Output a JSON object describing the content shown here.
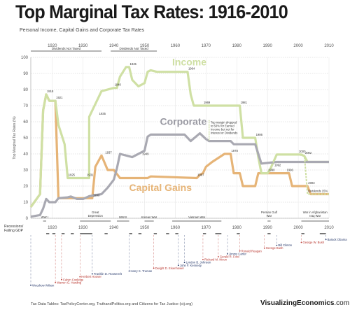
{
  "header": {
    "title": "Top Marginal Tax Rates: 1916-2010",
    "subtitle": "Personal Income, Capital Gains and Corporate Tax Rates"
  },
  "footer": {
    "source": "Tax Data Tables: TaxPolicyCenter.org, TruthandPolitics.org and Citizens for Tax Justice (ctj.org)",
    "brand_main": "VisualizingEconomics",
    "brand_domain": ".com"
  },
  "bands": {
    "top": [
      {
        "label": "Dividends Not Taxed",
        "start": 1913,
        "end": 1936
      },
      {
        "label": "Dividends Not Taxed",
        "start": 1939,
        "end": 1954
      }
    ],
    "events": [
      {
        "label": "WW I",
        "start": 1917,
        "end": 1918
      },
      {
        "label": "Great Depression",
        "start": 1929,
        "end": 1939
      },
      {
        "label": "WW II",
        "start": 1941,
        "end": 1945
      },
      {
        "label": "Korean War",
        "start": 1950,
        "end": 1953
      },
      {
        "label": "Vietnam War",
        "start": 1959,
        "end": 1975
      },
      {
        "label": "Persian Gulf War",
        "start": 1990,
        "end": 1991
      },
      {
        "label": "War in Afghanistan Iraq War",
        "start": 2001,
        "end": 2010
      }
    ]
  },
  "recession_label": "Recessions/ Falling GDP",
  "recessions": [
    [
      1918,
      1919
    ],
    [
      1920,
      1921
    ],
    [
      1923,
      1924
    ],
    [
      1926,
      1927
    ],
    [
      1929,
      1933
    ],
    [
      1937,
      1938
    ],
    [
      1945,
      1946
    ],
    [
      1948,
      1949
    ],
    [
      1953,
      1954
    ],
    [
      1957,
      1958
    ],
    [
      1960,
      1961
    ],
    [
      1969,
      1970
    ],
    [
      1973,
      1975
    ],
    [
      1980,
      1981
    ],
    [
      1990,
      1991
    ],
    [
      2001,
      2002
    ],
    [
      2007,
      2009
    ]
  ],
  "presidents": [
    {
      "name": "Woodrow Wilson",
      "year": 1913,
      "color": "#27396b"
    },
    {
      "name": "Warren G. Harding",
      "year": 1921,
      "color": "#b8342c"
    },
    {
      "name": "Calvin Coolidge",
      "year": 1923,
      "color": "#b8342c"
    },
    {
      "name": "Herbert Hoover",
      "year": 1929,
      "color": "#b8342c"
    },
    {
      "name": "Franklin D. Roosevelt",
      "year": 1933,
      "color": "#27396b"
    },
    {
      "name": "Harry S. Truman",
      "year": 1945,
      "color": "#27396b"
    },
    {
      "name": "Dwight D. Eisenhower",
      "year": 1953,
      "color": "#b8342c"
    },
    {
      "name": "John F. Kennedy",
      "year": 1961,
      "color": "#27396b"
    },
    {
      "name": "Lyndon B. Johnson",
      "year": 1963,
      "color": "#27396b"
    },
    {
      "name": "Richard M. Nixon",
      "year": 1969,
      "color": "#b8342c"
    },
    {
      "name": "Gerald R. Ford",
      "year": 1974,
      "color": "#b8342c"
    },
    {
      "name": "Jimmy Carter",
      "year": 1977,
      "color": "#27396b"
    },
    {
      "name": "Ronald Reagan",
      "year": 1981,
      "color": "#b8342c"
    },
    {
      "name": "George Bush",
      "year": 1989,
      "color": "#b8342c"
    },
    {
      "name": "Bill Clinton",
      "year": 1993,
      "color": "#27396b"
    },
    {
      "name": "George W. Bush",
      "year": 2001,
      "color": "#b8342c"
    },
    {
      "name": "Barack Obama",
      "year": 2009,
      "color": "#27396b"
    }
  ],
  "chart_data": {
    "type": "line",
    "title": "Top Marginal Tax Rates: 1916-2010",
    "subtitle": "Personal Income, Capital Gains and Corporate Tax Rates",
    "xlabel": "",
    "ylabel": "Top Marginal Tax Rates (%)",
    "xlim": [
      1913,
      2010
    ],
    "ylim": [
      0,
      100
    ],
    "xticks": [
      1920,
      1930,
      1940,
      1950,
      1960,
      1970,
      1980,
      1990,
      2000,
      2010
    ],
    "yticks": [
      0,
      10,
      20,
      30,
      40,
      50,
      60,
      70,
      80,
      90,
      100
    ],
    "grid": true,
    "legend": "inline labels",
    "colors": {
      "income": "#cfe0a4",
      "corporate": "#a9a9b2",
      "capital_gains": "#e6b477",
      "axis": "#cccccc"
    },
    "series": [
      {
        "name": "Income",
        "key": "income",
        "points": [
          [
            1913,
            7
          ],
          [
            1916,
            15
          ],
          [
            1917,
            67
          ],
          [
            1918,
            77
          ],
          [
            1919,
            73
          ],
          [
            1921,
            73
          ],
          [
            1922,
            58
          ],
          [
            1924,
            46
          ],
          [
            1925,
            25
          ],
          [
            1932,
            25
          ],
          [
            1932,
            63
          ],
          [
            1936,
            79
          ],
          [
            1940,
            81
          ],
          [
            1941,
            81
          ],
          [
            1942,
            88
          ],
          [
            1944,
            94
          ],
          [
            1945,
            94
          ],
          [
            1946,
            86
          ],
          [
            1948,
            82
          ],
          [
            1950,
            84
          ],
          [
            1951,
            91
          ],
          [
            1952,
            92
          ],
          [
            1954,
            91
          ],
          [
            1964,
            91
          ],
          [
            1965,
            77
          ],
          [
            1966,
            70
          ],
          [
            1971,
            70
          ],
          [
            1972,
            70
          ],
          [
            1981,
            70
          ],
          [
            1982,
            50
          ],
          [
            1986,
            50
          ],
          [
            1987,
            38
          ],
          [
            1988,
            28
          ],
          [
            1990,
            28
          ],
          [
            1991,
            31
          ],
          [
            1993,
            39.6
          ],
          [
            2001,
            39.6
          ],
          [
            2002,
            38.6
          ],
          [
            2003,
            35
          ],
          [
            2010,
            35
          ]
        ]
      },
      {
        "name": "Corporate",
        "key": "corporate",
        "points": [
          [
            1913,
            1
          ],
          [
            1916,
            2
          ],
          [
            1917,
            6
          ],
          [
            1918,
            12
          ],
          [
            1919,
            10
          ],
          [
            1921,
            10
          ],
          [
            1922,
            12.5
          ],
          [
            1925,
            13
          ],
          [
            1926,
            13.5
          ],
          [
            1928,
            12
          ],
          [
            1930,
            12
          ],
          [
            1932,
            13.75
          ],
          [
            1936,
            15
          ],
          [
            1938,
            19
          ],
          [
            1940,
            24
          ],
          [
            1941,
            31
          ],
          [
            1942,
            40
          ],
          [
            1946,
            38
          ],
          [
            1950,
            42
          ],
          [
            1951,
            50.75
          ],
          [
            1952,
            52
          ],
          [
            1963,
            52
          ],
          [
            1964,
            50
          ],
          [
            1965,
            48
          ],
          [
            1968,
            52.8
          ],
          [
            1970,
            49.2
          ],
          [
            1971,
            48
          ],
          [
            1978,
            48
          ],
          [
            1979,
            46
          ],
          [
            1986,
            46
          ],
          [
            1987,
            40
          ],
          [
            1988,
            34
          ],
          [
            1993,
            35
          ],
          [
            2010,
            35
          ]
        ]
      },
      {
        "name": "Capital Gains",
        "key": "capital_gains",
        "points": [
          [
            1913,
            7
          ],
          [
            1916,
            15
          ],
          [
            1917,
            67
          ],
          [
            1918,
            77
          ],
          [
            1919,
            73
          ],
          [
            1921,
            73
          ],
          [
            1922,
            12.5
          ],
          [
            1933,
            12.5
          ],
          [
            1934,
            32
          ],
          [
            1936,
            39
          ],
          [
            1938,
            30
          ],
          [
            1940,
            30
          ],
          [
            1942,
            25
          ],
          [
            1951,
            25
          ],
          [
            1952,
            26
          ],
          [
            1967,
            25
          ],
          [
            1968,
            27
          ],
          [
            1969,
            28
          ],
          [
            1970,
            32
          ],
          [
            1972,
            35
          ],
          [
            1976,
            40
          ],
          [
            1978,
            40
          ],
          [
            1979,
            28
          ],
          [
            1981,
            28
          ],
          [
            1982,
            20
          ],
          [
            1986,
            20
          ],
          [
            1987,
            28
          ],
          [
            1997,
            28
          ],
          [
            1998,
            20
          ],
          [
            2003,
            20
          ],
          [
            2004,
            15
          ],
          [
            2010,
            15
          ]
        ]
      },
      {
        "name": "Dividends",
        "key": "dividends",
        "points": [
          [
            1991,
            31
          ],
          [
            1993,
            39.6
          ],
          [
            2000,
            39.6
          ],
          [
            2002,
            38.6
          ],
          [
            2003,
            15
          ],
          [
            2010,
            15
          ]
        ]
      }
    ],
    "annotations": [
      {
        "text": "1918",
        "x": 1918,
        "y": 77
      },
      {
        "text": "1921",
        "x": 1921,
        "y": 73
      },
      {
        "text": "1925",
        "x": 1925,
        "y": 25
      },
      {
        "text": "1931",
        "x": 1931,
        "y": 25
      },
      {
        "text": "1933",
        "x": 1933,
        "y": 12.5
      },
      {
        "text": "1935",
        "x": 1935,
        "y": 63
      },
      {
        "text": "1937",
        "x": 1937,
        "y": 39
      },
      {
        "text": "1940",
        "x": 1940,
        "y": 81
      },
      {
        "text": "1945",
        "x": 1945,
        "y": 94
      },
      {
        "text": "1949",
        "x": 1949,
        "y": 38
      },
      {
        "text": "1964",
        "x": 1964,
        "y": 91
      },
      {
        "text": "1967",
        "x": 1967,
        "y": 25
      },
      {
        "text": "1969",
        "x": 1969,
        "y": 70
      },
      {
        "text": "1978",
        "x": 1978,
        "y": 40
      },
      {
        "text": "1981",
        "x": 1981,
        "y": 70
      },
      {
        "text": "1986",
        "x": 1986,
        "y": 50
      },
      {
        "text": "1990",
        "x": 1990,
        "y": 28
      },
      {
        "text": "1992",
        "x": 1992,
        "y": 31
      },
      {
        "text": "1996",
        "x": 1996,
        "y": 28
      },
      {
        "text": "2000",
        "x": 2000,
        "y": 39.6
      },
      {
        "text": "2002",
        "x": 2002,
        "y": 38.6
      },
      {
        "text": "2003",
        "x": 2003,
        "y": 20
      },
      {
        "text": "Dividends 15%",
        "x": 2003,
        "y": 15
      }
    ],
    "note": "Top margin dropped to 50% for Earned Income but not for Interest or Dividends"
  }
}
